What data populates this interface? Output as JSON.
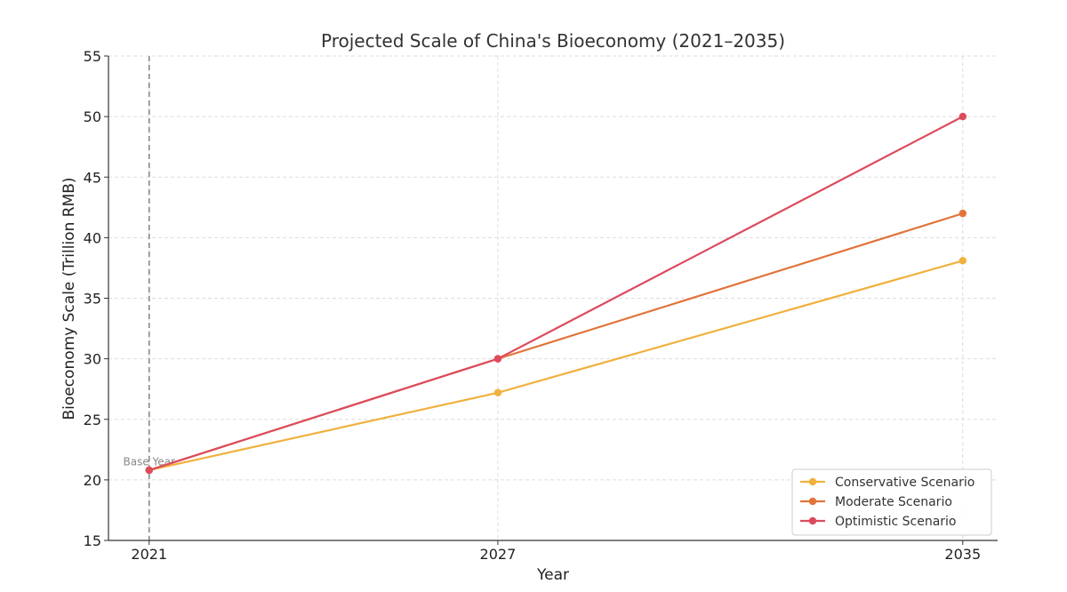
{
  "chart_data": {
    "type": "line",
    "title": "Projected Scale of China's Bioeconomy (2021–2035)",
    "xlabel": "Year",
    "ylabel": "Bioeconomy Scale (Trillion RMB)",
    "x": [
      2021,
      2027,
      2035
    ],
    "x_tick_labels": [
      "2021",
      "2027",
      "2035"
    ],
    "xlim": [
      2020.3,
      2035.6
    ],
    "ylim": [
      15,
      55
    ],
    "y_ticks": [
      15,
      20,
      25,
      30,
      35,
      40,
      45,
      50,
      55
    ],
    "grid": true,
    "legend_position": "lower-right",
    "series": [
      {
        "name": "Conservative Scenario",
        "color": "#f0b13e",
        "values": [
          20.8,
          27.2,
          38.1
        ]
      },
      {
        "name": "Moderate Scenario",
        "color": "#e2733a",
        "values": [
          20.8,
          30.0,
          42.0
        ]
      },
      {
        "name": "Optimistic Scenario",
        "color": "#dc4b5c",
        "values": [
          20.8,
          30.0,
          50.0
        ]
      }
    ],
    "annotations": [
      {
        "text": "Base Year",
        "x": 2021,
        "y": 21.5,
        "style": "vertical-dashed-line",
        "color": "#888888"
      }
    ]
  }
}
